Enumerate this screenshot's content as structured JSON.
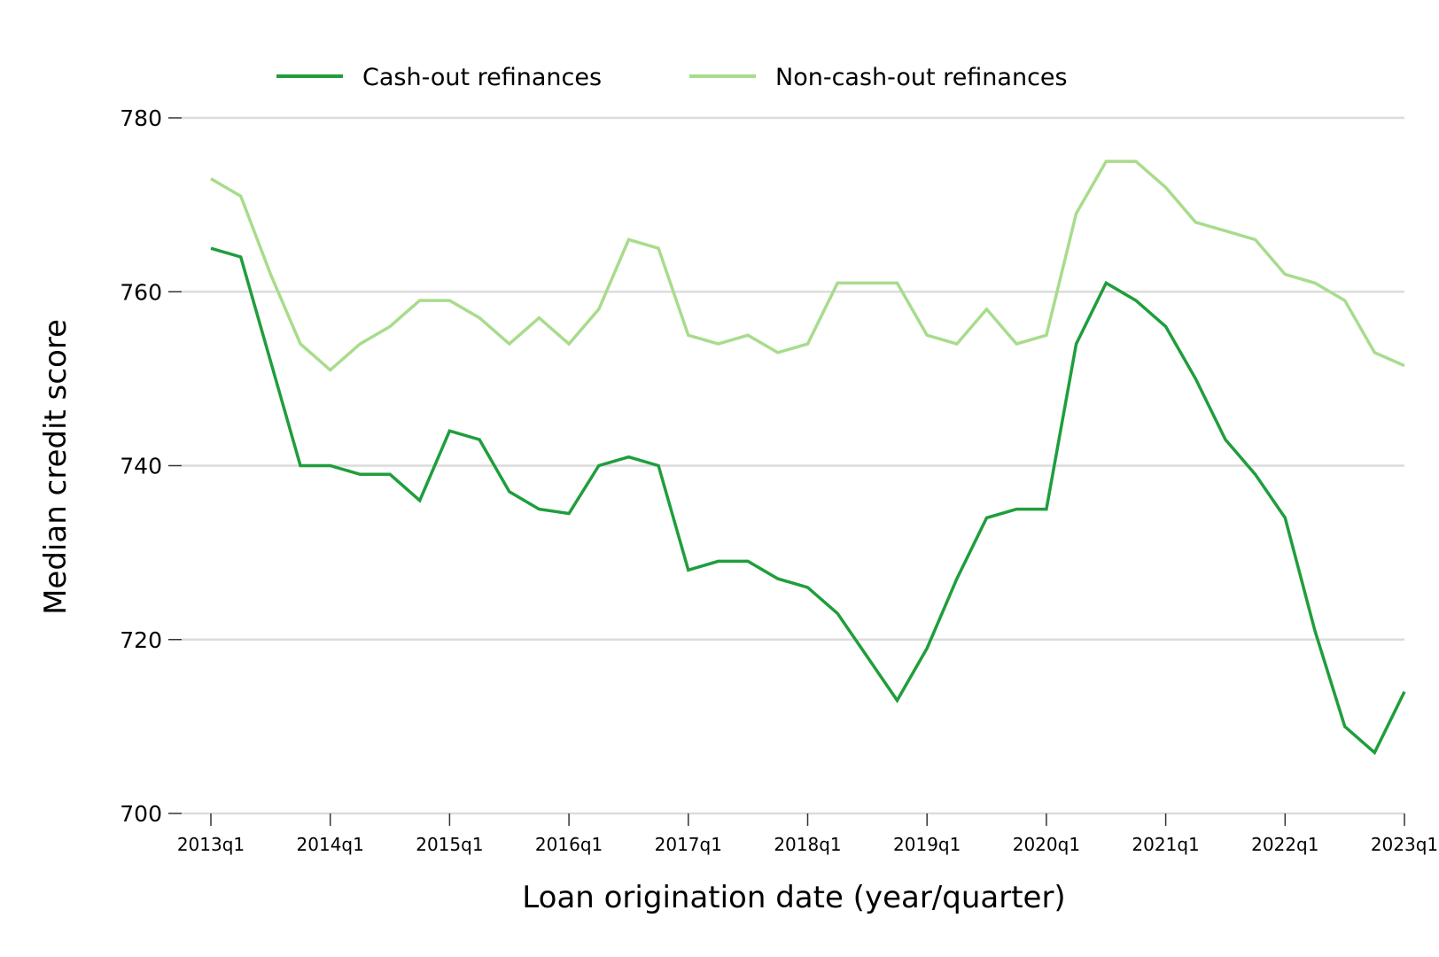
{
  "chart_data": {
    "type": "line",
    "title": "",
    "xlabel": "Loan origination date (year/quarter)",
    "ylabel": "Median credit score",
    "ylim": [
      700,
      780
    ],
    "yticks": [
      700,
      720,
      740,
      760,
      780
    ],
    "grid": "horizontal",
    "legend_placement": "top",
    "x_tick_labels": [
      "2013q1",
      "2014q1",
      "2015q1",
      "2016q1",
      "2017q1",
      "2018q1",
      "2019q1",
      "2020q1",
      "2021q1",
      "2022q1",
      "2023q1"
    ],
    "x": [
      "2013q1",
      "2013q2",
      "2013q3",
      "2013q4",
      "2014q1",
      "2014q2",
      "2014q3",
      "2014q4",
      "2015q1",
      "2015q2",
      "2015q3",
      "2015q4",
      "2016q1",
      "2016q2",
      "2016q3",
      "2016q4",
      "2017q1",
      "2017q2",
      "2017q3",
      "2017q4",
      "2018q1",
      "2018q2",
      "2018q3",
      "2018q4",
      "2019q1",
      "2019q2",
      "2019q3",
      "2019q4",
      "2020q1",
      "2020q2",
      "2020q3",
      "2020q4",
      "2021q1",
      "2021q2",
      "2021q3",
      "2021q4",
      "2022q1",
      "2022q2",
      "2022q3",
      "2022q4",
      "2023q1"
    ],
    "series": [
      {
        "name": "Cash-out refinances",
        "color": "#1f9e3c",
        "values": [
          765,
          764,
          752,
          740,
          740,
          739,
          739,
          736,
          744,
          743,
          737,
          735,
          734.5,
          740,
          741,
          740,
          728,
          729,
          729,
          727,
          726,
          723,
          718,
          713,
          719,
          727,
          734,
          735,
          735,
          754,
          761,
          759,
          756,
          750,
          743,
          739,
          734,
          721,
          710,
          707,
          714
        ]
      },
      {
        "name": "Non-cash-out refinances",
        "color": "#a8dc8c",
        "values": [
          773,
          771,
          762,
          754,
          751,
          754,
          756,
          759,
          759,
          757,
          754,
          757,
          754,
          758,
          766,
          765,
          755,
          754,
          755,
          753,
          754,
          761,
          761,
          761,
          755,
          754,
          758,
          754,
          755,
          769,
          775,
          775,
          772,
          768,
          767,
          766,
          762,
          761,
          759,
          753,
          751.5
        ]
      }
    ]
  }
}
